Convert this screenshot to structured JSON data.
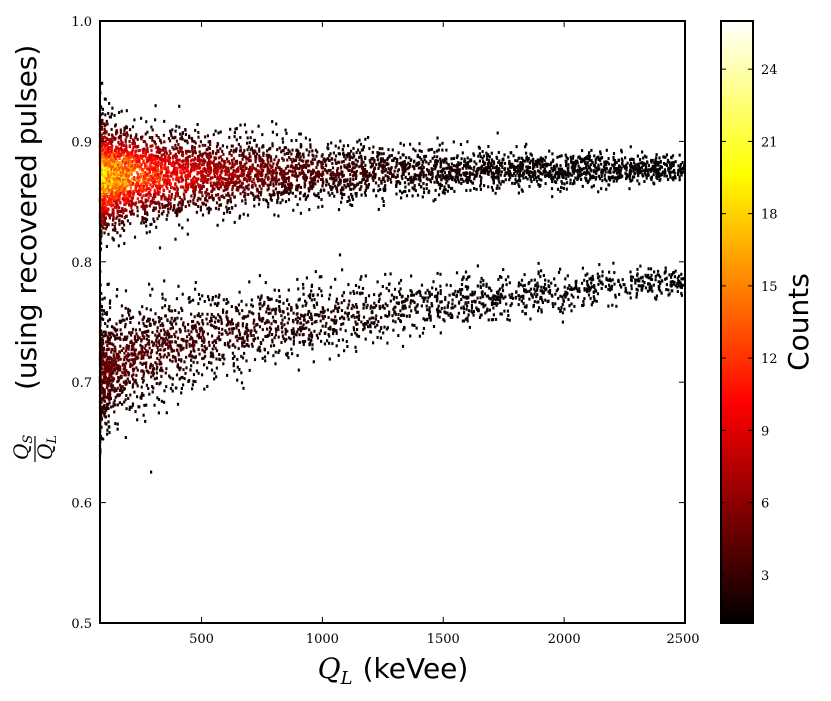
{
  "chart_data": {
    "type": "heatmap",
    "x_axis": {
      "symbol": "Q",
      "subscript": "L",
      "label_suffix": "(keVee)",
      "range": [
        80,
        2500
      ],
      "ticks": [
        500,
        1000,
        1500,
        2000,
        2500
      ],
      "tick_labels": [
        "500",
        "1000",
        "1500",
        "2000",
        "2500"
      ]
    },
    "y_axis": {
      "numerator": {
        "symbol": "Q",
        "subscript": "S"
      },
      "denominator": {
        "symbol": "Q",
        "subscript": "L"
      },
      "label_suffix": "(using recovered pulses)",
      "range": [
        0.5,
        1.0
      ],
      "ticks": [
        0.5,
        0.6,
        0.7,
        0.8,
        0.9,
        1.0
      ],
      "tick_labels": [
        "0.5",
        "0.6",
        "0.7",
        "0.8",
        "0.9",
        "1.0"
      ]
    },
    "colorbar": {
      "label": "Counts",
      "range": [
        1,
        26
      ],
      "ticks": [
        3,
        6,
        9,
        12,
        15,
        18,
        21,
        24
      ],
      "tick_labels": [
        "3",
        "6",
        "9",
        "12",
        "15",
        "18",
        "21",
        "24"
      ],
      "colormap": "hot"
    },
    "bands": [
      {
        "x_range": [
          80,
          2500
        ],
        "center_at_low": 0.87,
        "center_at_high": 0.877,
        "width_at_low": 0.04,
        "width_at_high": 0.008,
        "peak_counts": 25
      },
      {
        "x_range": [
          80,
          2500
        ],
        "center_at_low": 0.7,
        "center_at_high": 0.785,
        "width_at_low": 0.045,
        "width_at_high": 0.01,
        "peak_counts": 6
      }
    ],
    "grid": false
  }
}
